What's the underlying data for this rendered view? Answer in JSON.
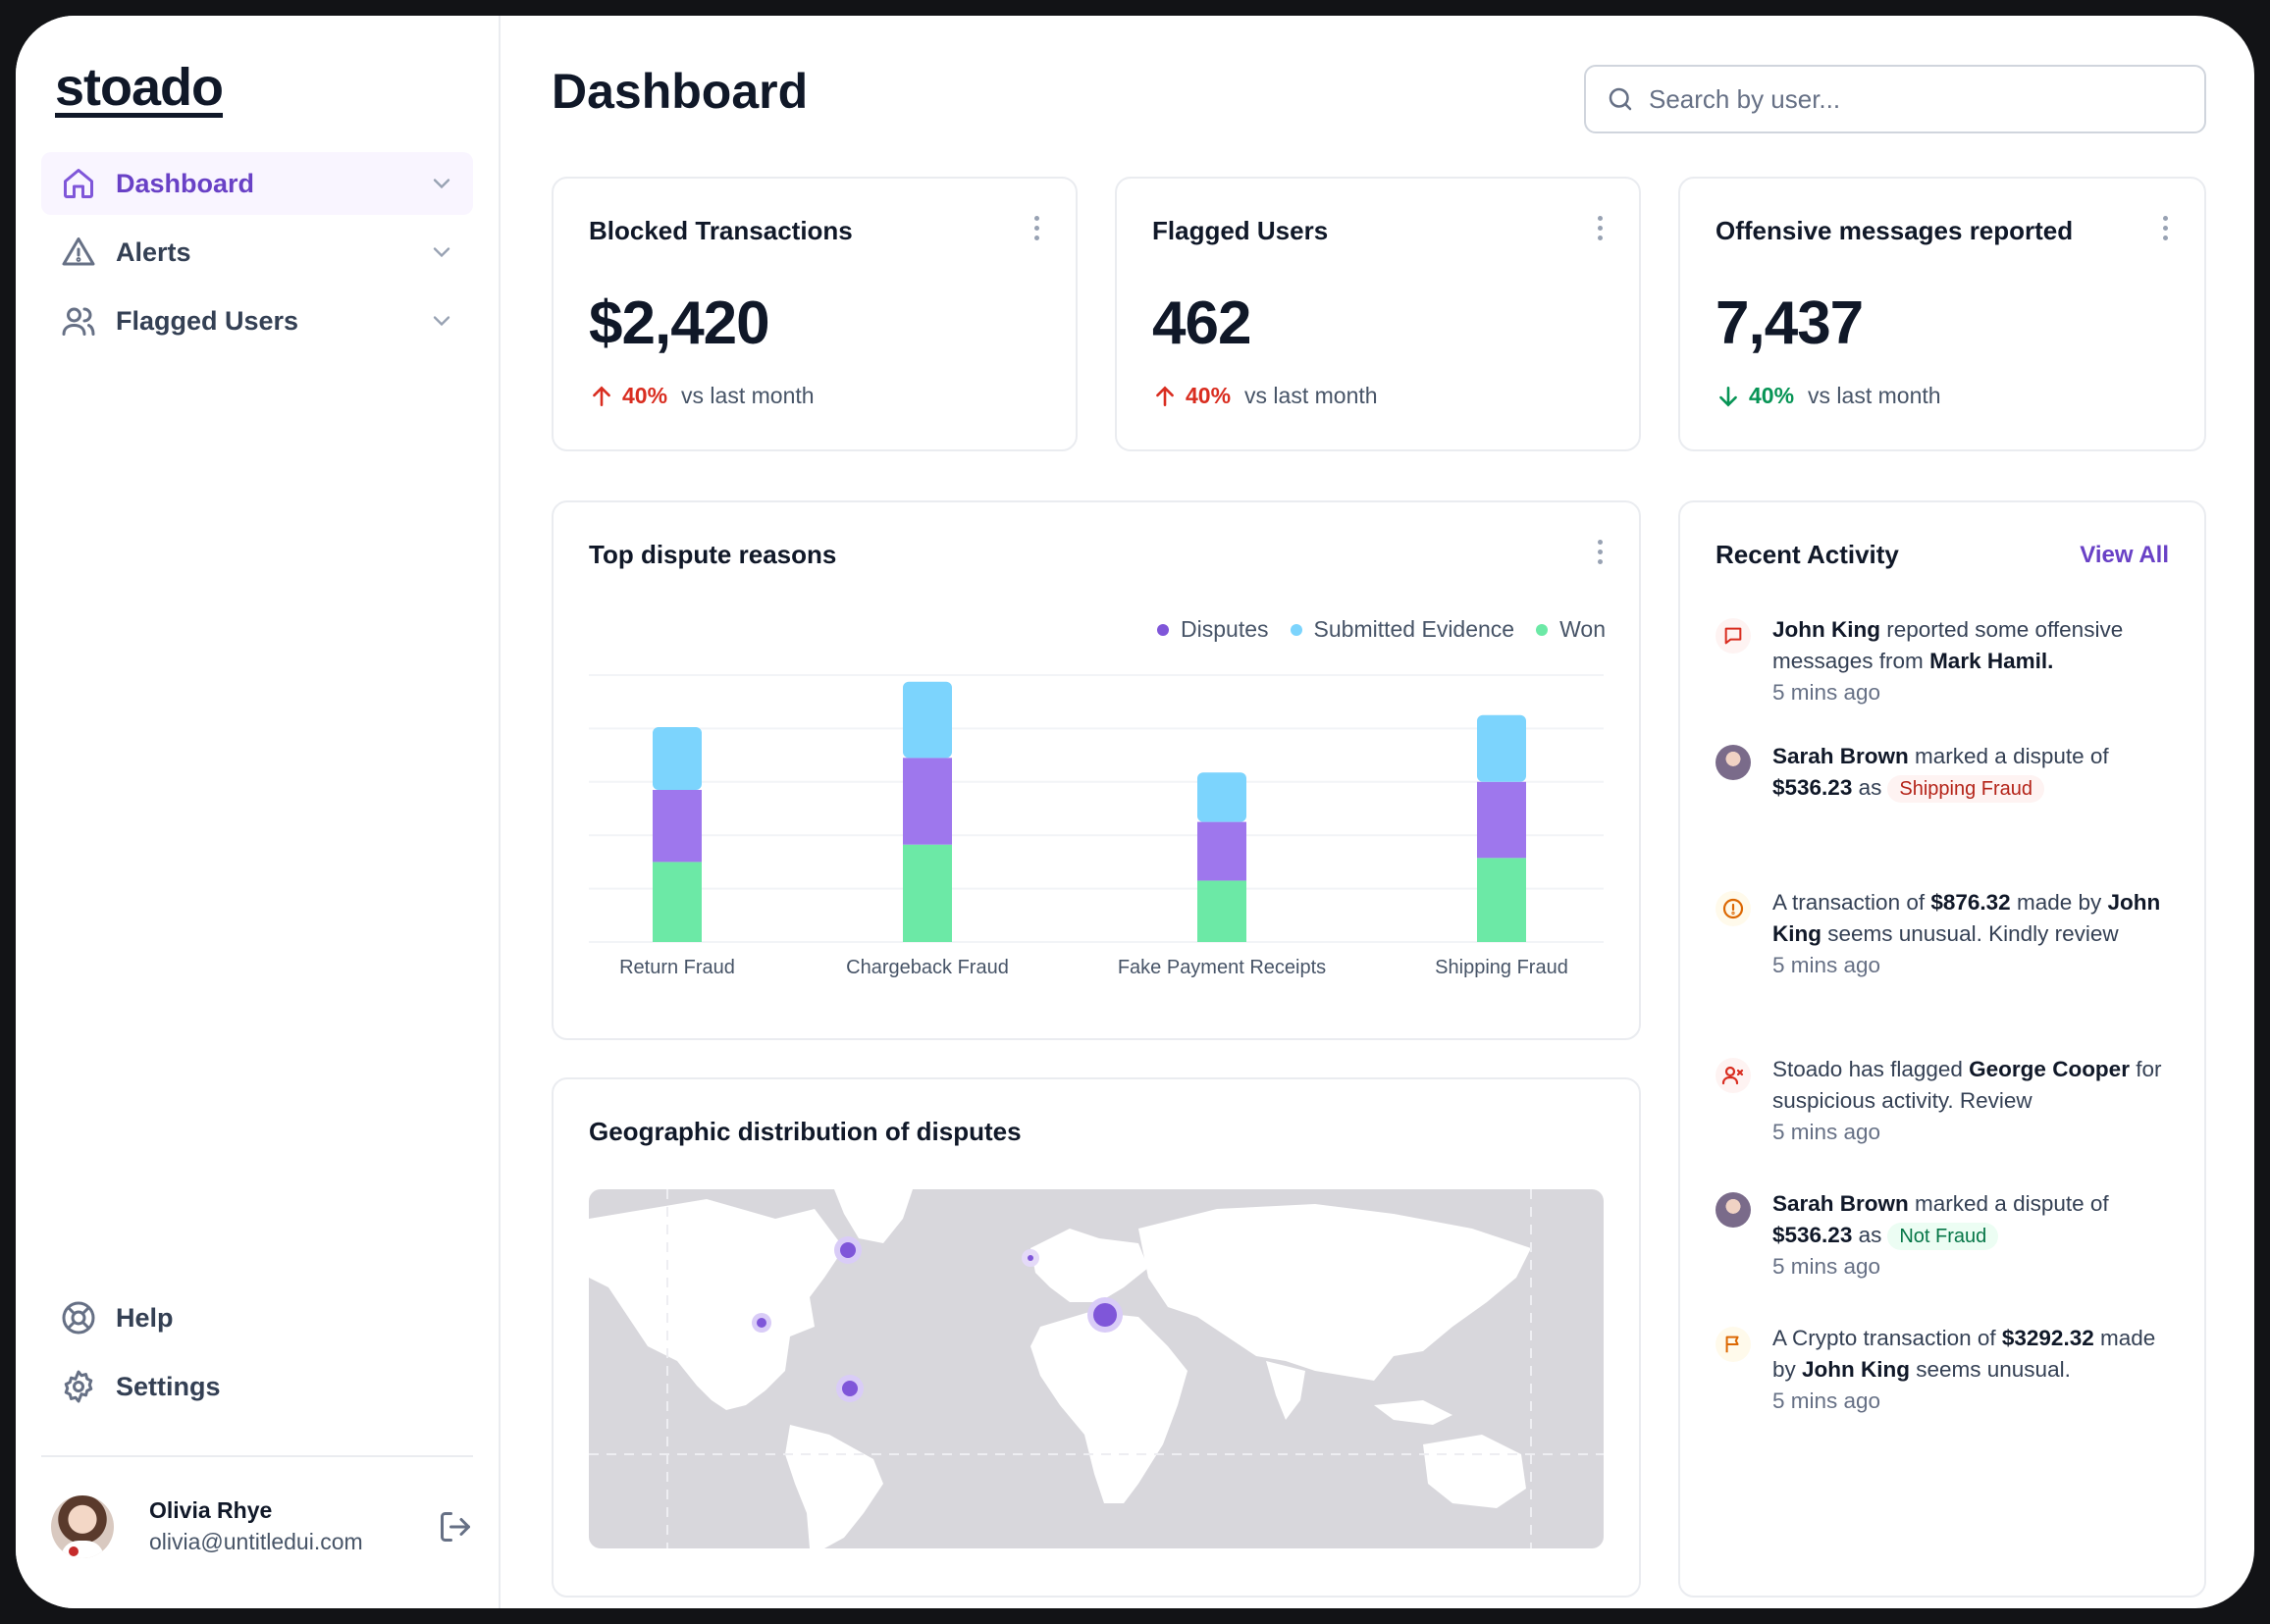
{
  "app": {
    "logo": "stoado"
  },
  "sidebar": {
    "items": [
      {
        "label": "Dashboard",
        "icon": "home-icon",
        "active": true
      },
      {
        "label": "Alerts",
        "icon": "alert-triangle-icon",
        "active": false
      },
      {
        "label": "Flagged Users",
        "icon": "users-icon",
        "active": false
      }
    ],
    "footer_items": [
      {
        "label": "Help",
        "icon": "life-buoy-icon"
      },
      {
        "label": "Settings",
        "icon": "gear-icon"
      }
    ],
    "user": {
      "name": "Olivia Rhye",
      "email": "olivia@untitledui.com"
    }
  },
  "header": {
    "title": "Dashboard",
    "search_placeholder": "Search by user..."
  },
  "stats": [
    {
      "title": "Blocked Transactions",
      "value": "$2,420",
      "change": "40%",
      "direction": "up",
      "compare": "vs last month"
    },
    {
      "title": "Flagged Users",
      "value": "462",
      "change": "40%",
      "direction": "up",
      "compare": "vs last month"
    },
    {
      "title": "Offensive messages reported",
      "value": "7,437",
      "change": "40%",
      "direction": "down",
      "compare": "vs last month"
    }
  ],
  "dispute_card": {
    "title": "Top dispute reasons"
  },
  "chart_data": {
    "type": "bar",
    "stacked": true,
    "categories": [
      "Return Fraud",
      "Chargeback Fraud",
      "Fake Payment Receipts",
      "Shipping Fraud"
    ],
    "series": [
      {
        "name": "Won",
        "color": "#6ce9a6",
        "values": [
          60,
          73,
          46,
          63
        ]
      },
      {
        "name": "Disputes",
        "color": "#9e77ed",
        "values": [
          54,
          65,
          44,
          57
        ]
      },
      {
        "name": "Submitted Evidence",
        "color": "#7cd4fd",
        "values": [
          47,
          57,
          37,
          50
        ]
      }
    ],
    "legend": [
      "Disputes",
      "Submitted Evidence",
      "Won"
    ],
    "ylim": [
      0,
      200
    ],
    "grid": true,
    "legend_position": "top-right"
  },
  "geo_card": {
    "title": "Geographic distribution of disputes"
  },
  "map_markers": [
    {
      "name": "north-atlantic",
      "size": "medium"
    },
    {
      "name": "mexico",
      "size": "small"
    },
    {
      "name": "south-america",
      "size": "medium"
    },
    {
      "name": "central-asia",
      "size": "small"
    },
    {
      "name": "east-asia",
      "size": "large"
    }
  ],
  "activity": {
    "title": "Recent Activity",
    "view_all": "View All",
    "items": [
      {
        "parts": [
          [
            "b",
            "John King"
          ],
          [
            "t",
            " reported some offensive messages from "
          ],
          [
            "b",
            "Mark Hamil."
          ]
        ],
        "time": "5 mins ago",
        "icon": "message-icon"
      },
      {
        "parts": [
          [
            "b",
            "Sarah Brown"
          ],
          [
            "t",
            " marked a dispute of "
          ],
          [
            "b",
            "$536.23"
          ],
          [
            "t",
            " as"
          ]
        ],
        "badge": "Shipping Fraud",
        "badge_tone": "red",
        "time": "",
        "icon": "avatar"
      },
      {
        "parts": [
          [
            "t",
            "A transaction of "
          ],
          [
            "b",
            "$876.32"
          ],
          [
            "t",
            " made by "
          ],
          [
            "b",
            "John King"
          ],
          [
            "t",
            " seems unusual. Kindly review"
          ]
        ],
        "time": "5 mins ago",
        "icon": "alert-circle-icon"
      },
      {
        "parts": [
          [
            "t",
            "Stoado has flagged "
          ],
          [
            "b",
            "George Cooper"
          ],
          [
            "t",
            " for suspicious activity. Review"
          ]
        ],
        "time": "5 mins ago",
        "icon": "user-x-icon"
      },
      {
        "parts": [
          [
            "b",
            "Sarah Brown"
          ],
          [
            "t",
            " marked a dispute of "
          ],
          [
            "b",
            "$536.23"
          ],
          [
            "t",
            " as"
          ]
        ],
        "badge": "Not Fraud",
        "badge_tone": "green",
        "time": "5 mins ago",
        "icon": "avatar"
      },
      {
        "parts": [
          [
            "t",
            "A Crypto transaction of "
          ],
          [
            "b",
            "$3292.32"
          ],
          [
            "t",
            " made by "
          ],
          [
            "b",
            "John King"
          ],
          [
            "t",
            " seems unusual."
          ]
        ],
        "time": "5 mins ago",
        "icon": "flag-icon"
      }
    ]
  }
}
